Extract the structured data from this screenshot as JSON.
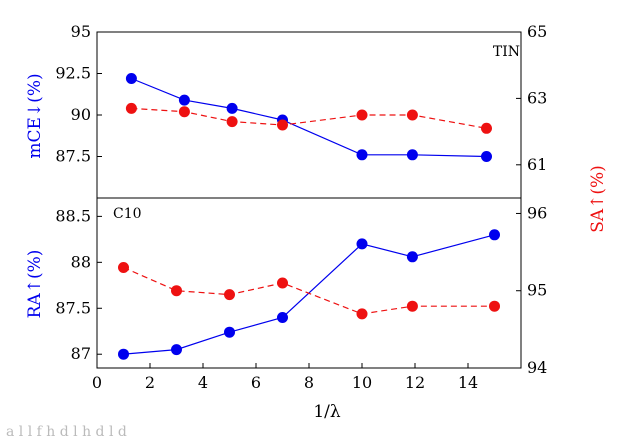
{
  "colors": {
    "blue": "#0000ee",
    "red": "#ee1111",
    "frame": "#000000",
    "caption": "#bbbbbb"
  },
  "caption_fragment": "a         l      l   f  h                   d  l      h   d   l                        d",
  "chart_data": [
    {
      "type": "line",
      "panel": "top",
      "title": "TIN",
      "legend": "none",
      "grid": false,
      "xlim": [
        0,
        16
      ],
      "series": [
        {
          "axis": "left",
          "color": "#0000ee",
          "style": "solid",
          "x": [
            1.3,
            3.3,
            5.1,
            7.0,
            10.0,
            11.9,
            14.7
          ],
          "y": [
            92.2,
            90.9,
            90.4,
            89.7,
            87.6,
            87.6,
            87.5
          ]
        },
        {
          "axis": "right",
          "color": "#ee1111",
          "style": "dashed",
          "x": [
            1.3,
            3.3,
            5.1,
            7.0,
            10.0,
            11.9,
            14.7
          ],
          "y": [
            62.7,
            62.6,
            62.3,
            62.2,
            62.5,
            62.5,
            62.1
          ]
        }
      ],
      "yleft": {
        "label": "mCE↓(%)",
        "lim": [
          85,
          95
        ],
        "ticks": [
          87.5,
          90,
          92.5,
          95
        ],
        "tick_labels": [
          "87.5",
          "90",
          "92.5",
          "95"
        ],
        "color": "#0000ee"
      },
      "yright": {
        "label": "SA↑(%)",
        "lim": [
          60,
          65
        ],
        "ticks": [
          61,
          63,
          65
        ],
        "tick_labels": [
          "61",
          "63",
          "65"
        ],
        "color": "#ee1111"
      }
    },
    {
      "type": "line",
      "panel": "bottom",
      "title": "C10",
      "legend": "none",
      "grid": false,
      "xlabel": "1/λ",
      "xlim": [
        0,
        16
      ],
      "xticks": [
        0,
        2,
        4,
        6,
        8,
        10,
        12,
        14
      ],
      "xtick_labels": [
        "0",
        "2",
        "4",
        "6",
        "8",
        "10",
        "12",
        "14"
      ],
      "series": [
        {
          "axis": "left",
          "color": "#0000ee",
          "style": "solid",
          "x": [
            1.0,
            3.0,
            5.0,
            7.0,
            10.0,
            11.9,
            15.0
          ],
          "y": [
            87.0,
            87.05,
            87.24,
            87.4,
            88.2,
            88.06,
            88.3
          ]
        },
        {
          "axis": "right",
          "color": "#ee1111",
          "style": "dashed",
          "x": [
            1.0,
            3.0,
            5.0,
            7.0,
            10.0,
            11.9,
            15.0
          ],
          "y": [
            95.3,
            95.0,
            94.95,
            95.1,
            94.7,
            94.8,
            94.8
          ]
        }
      ],
      "yleft": {
        "label": "RA↑(%)",
        "lim": [
          86.85,
          88.7
        ],
        "ticks": [
          87,
          87.5,
          88,
          88.5
        ],
        "tick_labels": [
          "87",
          "87.5",
          "88",
          "88.5"
        ],
        "color": "#0000ee"
      },
      "yright": {
        "label": "SA↑(%)",
        "lim": [
          94,
          96.2
        ],
        "ticks": [
          94,
          95,
          96
        ],
        "tick_labels": [
          "94",
          "95",
          "96"
        ],
        "color": "#ee1111"
      }
    }
  ]
}
